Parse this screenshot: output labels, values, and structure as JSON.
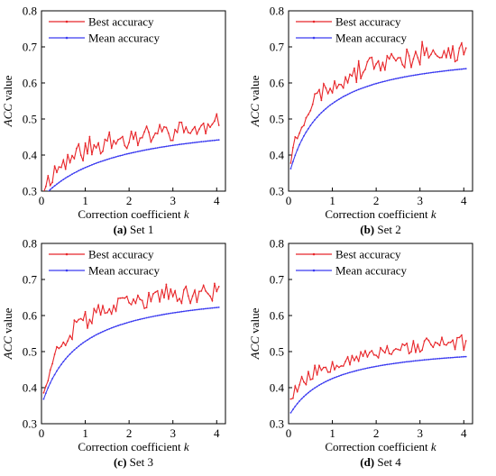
{
  "colors": {
    "best": "#e8262a",
    "mean": "#3b3bf0",
    "axis": "#000000"
  },
  "chart_data": [
    {
      "type": "line",
      "caption_bold": "(a)",
      "caption_rest": " Set 1",
      "xlabel": "Correction coefficient",
      "xlabel_var": "k",
      "ylabel": "ACC value",
      "xlim": [
        0,
        4.2
      ],
      "ylim": [
        0.3,
        0.8
      ],
      "xticks": [
        0,
        1,
        2,
        3,
        4
      ],
      "yticks": [
        0.3,
        0.4,
        0.5,
        0.6,
        0.7,
        0.8
      ],
      "legend": "top-left",
      "series": [
        {
          "name": "Best accuracy",
          "color": "#e8262a",
          "type": "noisy",
          "params": {
            "a": 0.3,
            "b": 0.215,
            "tau": 0.9,
            "noise": 0.028,
            "seed": 11
          }
        },
        {
          "name": "Mean accuracy",
          "color": "#3b3bf0",
          "type": "smooth",
          "params": {
            "a": 0.28,
            "b": 0.23,
            "tau": 1.7
          }
        }
      ]
    },
    {
      "type": "line",
      "caption_bold": "(b)",
      "caption_rest": " Set 2",
      "xlabel": "Correction coefficient",
      "xlabel_var": "k",
      "ylabel": "ACC value",
      "xlim": [
        0,
        4.2
      ],
      "ylim": [
        0.3,
        0.8
      ],
      "xticks": [
        0,
        1,
        2,
        3,
        4
      ],
      "yticks": [
        0.3,
        0.4,
        0.5,
        0.6,
        0.7,
        0.8
      ],
      "legend": "top-left",
      "series": [
        {
          "name": "Best accuracy",
          "color": "#e8262a",
          "type": "noisy",
          "params": {
            "a": 0.36,
            "b": 0.37,
            "tau": 0.55,
            "noise": 0.026,
            "seed": 23
          }
        },
        {
          "name": "Mean accuracy",
          "color": "#3b3bf0",
          "type": "smooth",
          "params": {
            "a": 0.34,
            "b": 0.355,
            "tau": 0.75
          }
        }
      ]
    },
    {
      "type": "line",
      "caption_bold": "(c)",
      "caption_rest": " Set 3",
      "xlabel": "Correction coefficient",
      "xlabel_var": "k",
      "ylabel": "ACC value",
      "xlim": [
        0,
        4.2
      ],
      "ylim": [
        0.3,
        0.8
      ],
      "xticks": [
        0,
        1,
        2,
        3,
        4
      ],
      "yticks": [
        0.3,
        0.4,
        0.5,
        0.6,
        0.7,
        0.8
      ],
      "legend": "top-left",
      "series": [
        {
          "name": "Best accuracy",
          "color": "#e8262a",
          "type": "noisy",
          "params": {
            "a": 0.37,
            "b": 0.335,
            "tau": 0.55,
            "noise": 0.025,
            "seed": 37
          }
        },
        {
          "name": "Mean accuracy",
          "color": "#3b3bf0",
          "type": "smooth",
          "params": {
            "a": 0.35,
            "b": 0.33,
            "tau": 0.85
          }
        }
      ]
    },
    {
      "type": "line",
      "caption_bold": "(d)",
      "caption_rest": " Set 4",
      "xlabel": "Correction coefficient",
      "xlabel_var": "k",
      "ylabel": "ACC value",
      "xlim": [
        0,
        4.2
      ],
      "ylim": [
        0.3,
        0.8
      ],
      "xticks": [
        0,
        1,
        2,
        3,
        4
      ],
      "yticks": [
        0.3,
        0.4,
        0.5,
        0.6,
        0.7,
        0.8
      ],
      "legend": "top-left",
      "series": [
        {
          "name": "Best accuracy",
          "color": "#e8262a",
          "type": "noisy",
          "params": {
            "a": 0.37,
            "b": 0.195,
            "tau": 1.0,
            "noise": 0.022,
            "seed": 53
          }
        },
        {
          "name": "Mean accuracy",
          "color": "#3b3bf0",
          "type": "smooth",
          "params": {
            "a": 0.32,
            "b": 0.205,
            "tau": 0.95
          }
        }
      ]
    }
  ]
}
